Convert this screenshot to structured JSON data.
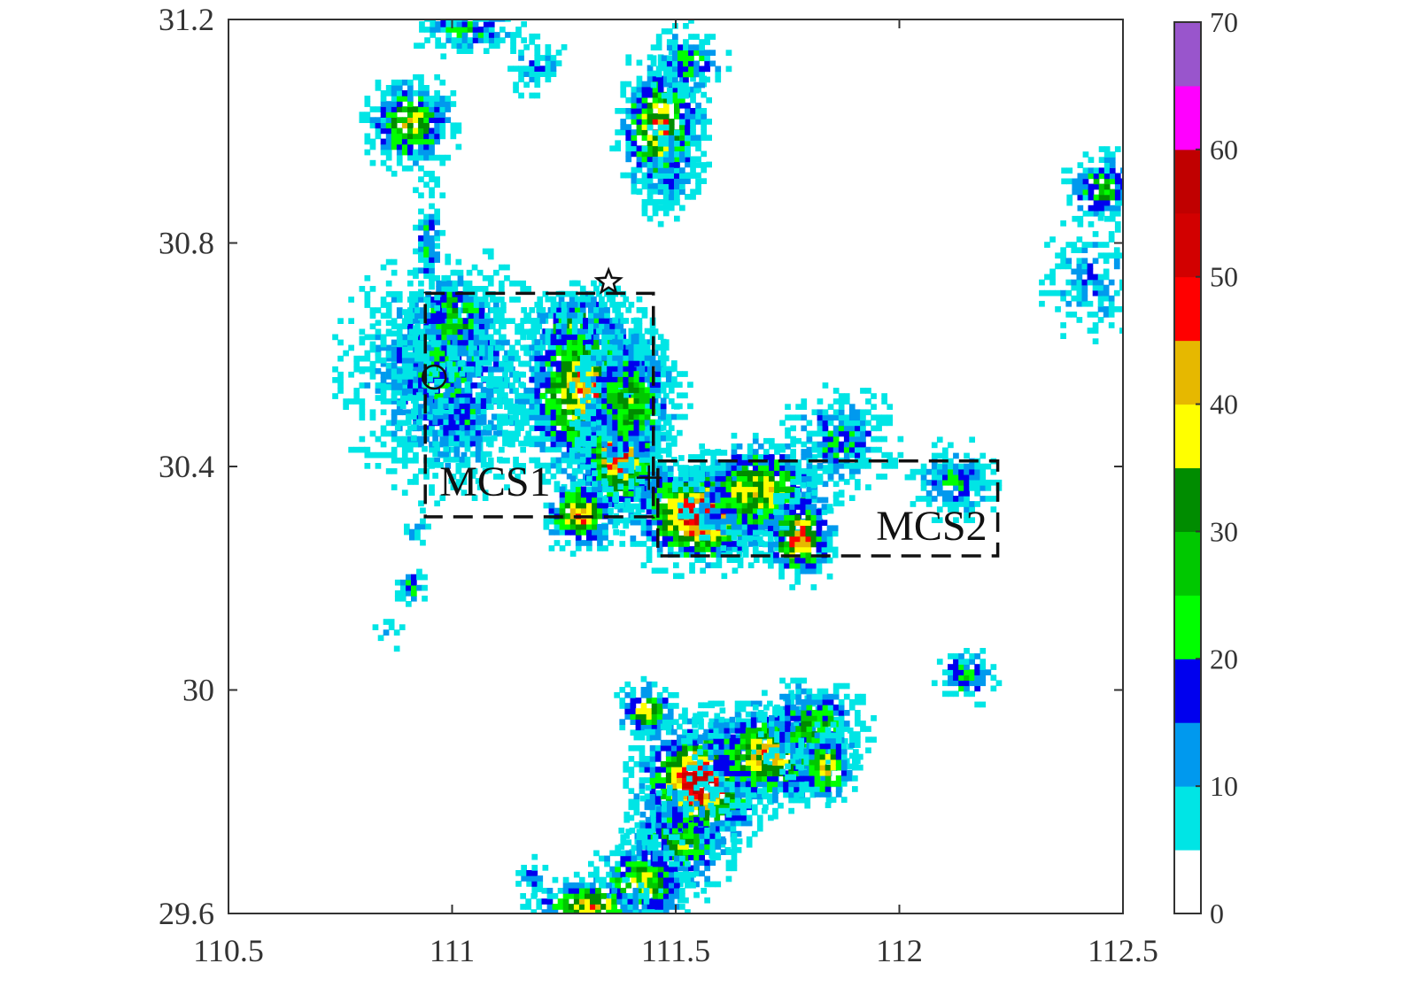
{
  "chart_data": {
    "type": "heatmap",
    "title": "",
    "xlabel": "",
    "ylabel": "",
    "xlim": [
      110.5,
      112.5
    ],
    "ylim": [
      29.6,
      31.2
    ],
    "x_ticks": [
      110.5,
      111,
      111.5,
      112,
      112.5
    ],
    "x_tick_labels": [
      "110.5",
      "111",
      "111.5",
      "112",
      "112.5"
    ],
    "y_ticks": [
      29.6,
      30,
      30.4,
      30.8,
      31.2
    ],
    "y_tick_labels": [
      "29.6",
      "30",
      "30.4",
      "30.8",
      "31.2"
    ],
    "grid": false,
    "colorbar": {
      "position": "right",
      "min": 0,
      "max": 70,
      "step": 5,
      "tick_values": [
        0,
        10,
        20,
        30,
        40,
        50,
        60,
        70
      ],
      "tick_labels": [
        "0",
        "10",
        "20",
        "30",
        "40",
        "50",
        "60",
        "70"
      ],
      "colors": [
        "#ffffff",
        "#00e5e5",
        "#0099ee",
        "#0000ee",
        "#00ff00",
        "#00c800",
        "#008c00",
        "#ffff00",
        "#e6b800",
        "#ff0000",
        "#d20000",
        "#c00000",
        "#ff00ff",
        "#9955cc"
      ]
    },
    "cells": [
      {
        "lon": 110.98,
        "lat": 30.56,
        "dbz": 20,
        "sx": 0.13,
        "sy": 0.12
      },
      {
        "lon": 111.02,
        "lat": 30.48,
        "dbz": 15,
        "sx": 0.08,
        "sy": 0.06
      },
      {
        "lon": 110.88,
        "lat": 30.58,
        "dbz": 12,
        "sx": 0.05,
        "sy": 0.05
      },
      {
        "lon": 111.0,
        "lat": 30.66,
        "dbz": 30,
        "sx": 0.06,
        "sy": 0.05
      },
      {
        "lon": 110.94,
        "lat": 30.8,
        "dbz": 20,
        "sx": 0.02,
        "sy": 0.07
      },
      {
        "lon": 110.9,
        "lat": 31.01,
        "dbz": 38,
        "sx": 0.06,
        "sy": 0.05
      },
      {
        "lon": 111.03,
        "lat": 31.18,
        "dbz": 20,
        "sx": 0.07,
        "sy": 0.03
      },
      {
        "lon": 111.18,
        "lat": 31.11,
        "dbz": 12,
        "sx": 0.04,
        "sy": 0.03
      },
      {
        "lon": 111.46,
        "lat": 31.0,
        "dbz": 42,
        "sx": 0.06,
        "sy": 0.08
      },
      {
        "lon": 111.52,
        "lat": 31.12,
        "dbz": 20,
        "sx": 0.05,
        "sy": 0.04
      },
      {
        "lon": 111.48,
        "lat": 30.92,
        "dbz": 15,
        "sx": 0.04,
        "sy": 0.05
      },
      {
        "lon": 111.27,
        "lat": 30.65,
        "dbz": 30,
        "sx": 0.07,
        "sy": 0.04
      },
      {
        "lon": 111.3,
        "lat": 30.53,
        "dbz": 44,
        "sx": 0.1,
        "sy": 0.1
      },
      {
        "lon": 111.37,
        "lat": 30.42,
        "dbz": 52,
        "sx": 0.06,
        "sy": 0.07
      },
      {
        "lon": 111.39,
        "lat": 30.51,
        "dbz": 30,
        "sx": 0.07,
        "sy": 0.08
      },
      {
        "lon": 111.28,
        "lat": 30.31,
        "dbz": 44,
        "sx": 0.05,
        "sy": 0.04
      },
      {
        "lon": 111.55,
        "lat": 30.31,
        "dbz": 54,
        "sx": 0.1,
        "sy": 0.06
      },
      {
        "lon": 111.68,
        "lat": 30.35,
        "dbz": 38,
        "sx": 0.1,
        "sy": 0.06
      },
      {
        "lon": 111.77,
        "lat": 30.27,
        "dbz": 46,
        "sx": 0.05,
        "sy": 0.05
      },
      {
        "lon": 111.86,
        "lat": 30.44,
        "dbz": 20,
        "sx": 0.07,
        "sy": 0.06
      },
      {
        "lon": 112.12,
        "lat": 30.37,
        "dbz": 20,
        "sx": 0.06,
        "sy": 0.04
      },
      {
        "lon": 112.45,
        "lat": 30.89,
        "dbz": 30,
        "sx": 0.05,
        "sy": 0.04
      },
      {
        "lon": 112.42,
        "lat": 30.73,
        "dbz": 12,
        "sx": 0.06,
        "sy": 0.06
      },
      {
        "lon": 110.92,
        "lat": 30.28,
        "dbz": 10,
        "sx": 0.02,
        "sy": 0.02
      },
      {
        "lon": 110.9,
        "lat": 30.18,
        "dbz": 25,
        "sx": 0.02,
        "sy": 0.02
      },
      {
        "lon": 110.85,
        "lat": 30.1,
        "dbz": 8,
        "sx": 0.02,
        "sy": 0.02
      },
      {
        "lon": 111.43,
        "lat": 29.96,
        "dbz": 42,
        "sx": 0.04,
        "sy": 0.03
      },
      {
        "lon": 111.55,
        "lat": 29.83,
        "dbz": 56,
        "sx": 0.09,
        "sy": 0.07
      },
      {
        "lon": 111.7,
        "lat": 29.88,
        "dbz": 40,
        "sx": 0.1,
        "sy": 0.06
      },
      {
        "lon": 111.8,
        "lat": 29.93,
        "dbz": 30,
        "sx": 0.07,
        "sy": 0.05
      },
      {
        "lon": 111.83,
        "lat": 29.86,
        "dbz": 40,
        "sx": 0.04,
        "sy": 0.04
      },
      {
        "lon": 111.5,
        "lat": 29.72,
        "dbz": 30,
        "sx": 0.07,
        "sy": 0.06
      },
      {
        "lon": 111.42,
        "lat": 29.65,
        "dbz": 34,
        "sx": 0.07,
        "sy": 0.05
      },
      {
        "lon": 111.3,
        "lat": 29.61,
        "dbz": 40,
        "sx": 0.08,
        "sy": 0.03
      },
      {
        "lon": 112.14,
        "lat": 30.02,
        "dbz": 25,
        "sx": 0.04,
        "sy": 0.03
      },
      {
        "lon": 111.17,
        "lat": 29.66,
        "dbz": 20,
        "sx": 0.02,
        "sy": 0.02
      }
    ],
    "annotations": [
      {
        "type": "box",
        "label": "MCS1",
        "x0": 110.94,
        "x1": 111.45,
        "y0": 30.31,
        "y1": 30.71
      },
      {
        "type": "box",
        "label": "MCS2",
        "x0": 111.46,
        "x1": 112.22,
        "y0": 30.24,
        "y1": 30.41
      },
      {
        "type": "star",
        "lon": 111.35,
        "lat": 30.73
      },
      {
        "type": "circle",
        "lon": 110.96,
        "lat": 30.56
      },
      {
        "type": "plus",
        "lon": 111.44,
        "lat": 30.38
      }
    ]
  }
}
